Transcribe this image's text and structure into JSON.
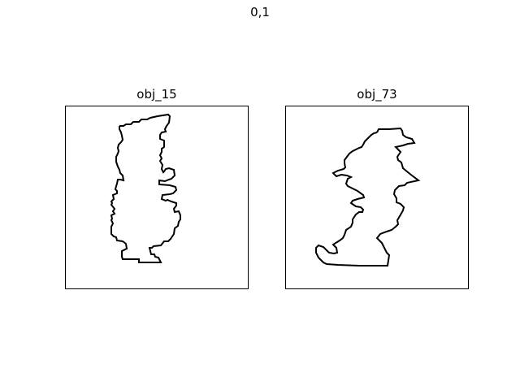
{
  "figure": {
    "title": "0,1",
    "panels": [
      {
        "title": "obj_15",
        "line_color": "#000000"
      },
      {
        "title": "obj_73",
        "line_color": "#000000"
      }
    ]
  }
}
